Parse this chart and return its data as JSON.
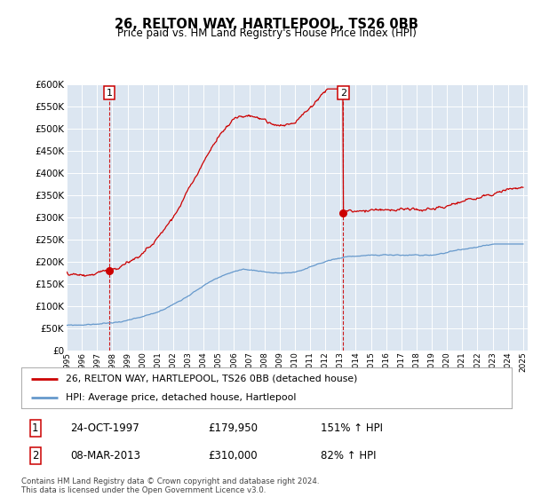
{
  "title": "26, RELTON WAY, HARTLEPOOL, TS26 0BB",
  "subtitle": "Price paid vs. HM Land Registry's House Price Index (HPI)",
  "property_color": "#cc0000",
  "hpi_color": "#6699cc",
  "background_color": "#dce6f1",
  "ylim": [
    0,
    600000
  ],
  "yticks": [
    0,
    50000,
    100000,
    150000,
    200000,
    250000,
    300000,
    350000,
    400000,
    450000,
    500000,
    550000,
    600000
  ],
  "xlim_start": 1995,
  "xlim_end": 2025.3,
  "sale1_date": 1997.81,
  "sale1_price": 179950,
  "sale1_label": "1",
  "sale2_date": 2013.18,
  "sale2_price": 310000,
  "sale2_label": "2",
  "legend_line1": "26, RELTON WAY, HARTLEPOOL, TS26 0BB (detached house)",
  "legend_line2": "HPI: Average price, detached house, Hartlepool",
  "annotation1_date": "24-OCT-1997",
  "annotation1_price": "£179,950",
  "annotation1_hpi": "151% ↑ HPI",
  "annotation2_date": "08-MAR-2013",
  "annotation2_price": "£310,000",
  "annotation2_hpi": "82% ↑ HPI",
  "footer": "Contains HM Land Registry data © Crown copyright and database right 2024.\nThis data is licensed under the Open Government Licence v3.0."
}
